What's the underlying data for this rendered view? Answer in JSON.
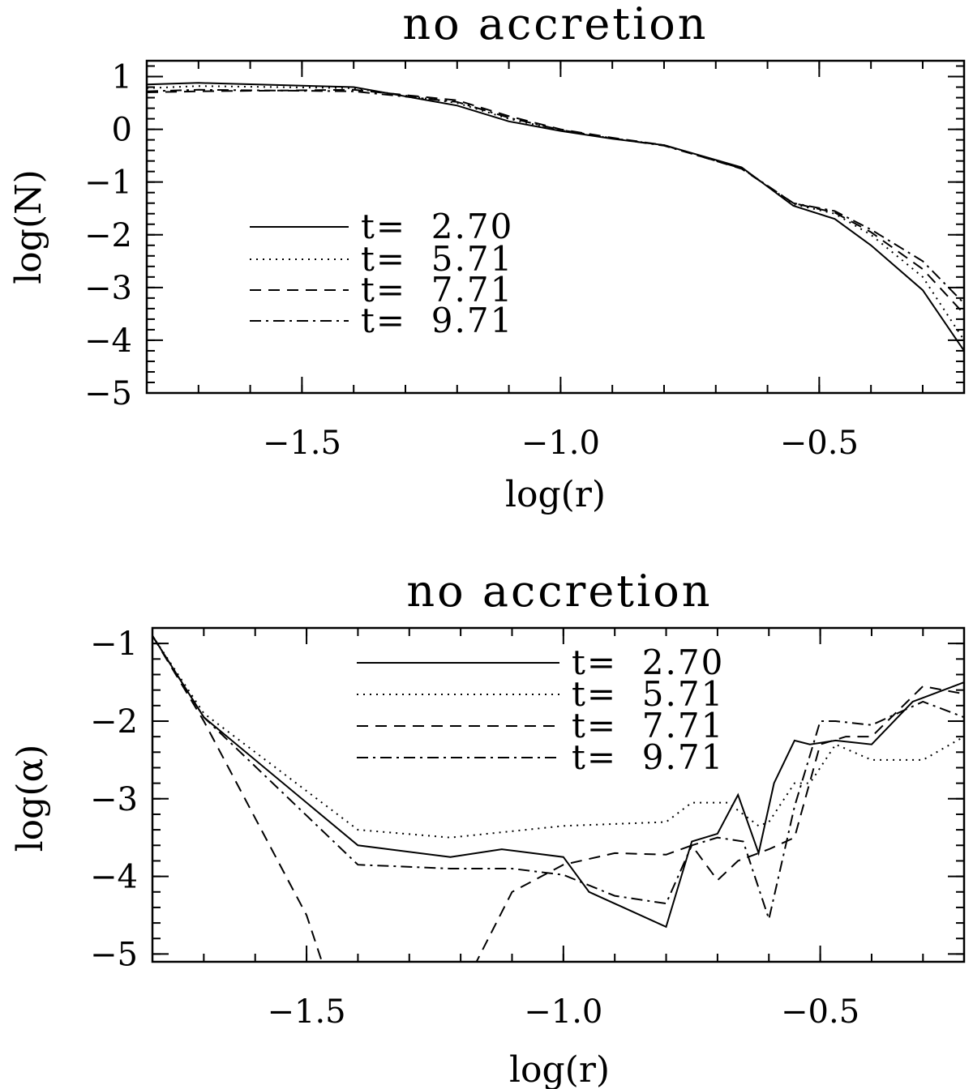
{
  "chart_data": [
    {
      "type": "line",
      "title": "no accretion",
      "xlabel": "log(r)",
      "ylabel": "log(N)",
      "xlim": [
        -1.8,
        -0.22
      ],
      "ylim": [
        -5,
        1.3
      ],
      "xticks": [
        -1.5,
        -1.0,
        -0.5
      ],
      "xtick_labels": [
        "−1.5",
        "−1.0",
        "−0.5"
      ],
      "yticks": [
        1,
        0,
        -1,
        -2,
        -3,
        -4,
        -5
      ],
      "ytick_labels": [
        "1",
        "0",
        "−1",
        "−2",
        "−3",
        "−4",
        "−5"
      ],
      "legend_position": "center-left",
      "series": [
        {
          "name": "t=  2.70",
          "style": "solid",
          "x": [
            -1.8,
            -1.7,
            -1.4,
            -1.2,
            -1.1,
            -1.0,
            -0.9,
            -0.8,
            -0.65,
            -0.55,
            -0.47,
            -0.4,
            -0.3,
            -0.22
          ],
          "y": [
            0.85,
            0.88,
            0.8,
            0.45,
            0.15,
            -0.03,
            -0.18,
            -0.3,
            -0.72,
            -1.45,
            -1.7,
            -2.2,
            -3.05,
            -4.2
          ]
        },
        {
          "name": "t=  5.71",
          "style": "dotted",
          "x": [
            -1.8,
            -1.7,
            -1.4,
            -1.2,
            -1.1,
            -1.0,
            -0.9,
            -0.8,
            -0.65,
            -0.55,
            -0.47,
            -0.4,
            -0.3,
            -0.22
          ],
          "y": [
            0.78,
            0.82,
            0.78,
            0.5,
            0.2,
            -0.02,
            -0.17,
            -0.3,
            -0.73,
            -1.42,
            -1.6,
            -2.0,
            -2.8,
            -4.0
          ]
        },
        {
          "name": "t=  7.71",
          "style": "dashed",
          "x": [
            -1.8,
            -1.7,
            -1.4,
            -1.2,
            -1.1,
            -1.0,
            -0.9,
            -0.8,
            -0.65,
            -0.55,
            -0.47,
            -0.4,
            -0.3,
            -0.22
          ],
          "y": [
            0.7,
            0.72,
            0.75,
            0.55,
            0.25,
            0.0,
            -0.16,
            -0.3,
            -0.75,
            -1.4,
            -1.58,
            -1.95,
            -2.65,
            -3.5
          ]
        },
        {
          "name": "t=  9.71",
          "style": "dashdot",
          "x": [
            -1.8,
            -1.7,
            -1.4,
            -1.2,
            -1.1,
            -1.0,
            -0.9,
            -0.8,
            -0.65,
            -0.55,
            -0.47,
            -0.4,
            -0.3,
            -0.22
          ],
          "y": [
            0.72,
            0.75,
            0.72,
            0.52,
            0.22,
            -0.01,
            -0.17,
            -0.31,
            -0.74,
            -1.4,
            -1.55,
            -1.9,
            -2.5,
            -3.3
          ]
        }
      ]
    },
    {
      "type": "line",
      "title": "no accretion",
      "xlabel": "log(r)",
      "ylabel": "log(α)",
      "xlim": [
        -1.8,
        -0.22
      ],
      "ylim": [
        -5.1,
        -0.8
      ],
      "xticks": [
        -1.5,
        -1.0,
        -0.5
      ],
      "xtick_labels": [
        "−1.5",
        "−1.0",
        "−0.5"
      ],
      "yticks": [
        -1,
        -2,
        -3,
        -4,
        -5
      ],
      "ytick_labels": [
        "−1",
        "−2",
        "−3",
        "−4",
        "−5"
      ],
      "legend_position": "top-center",
      "series": [
        {
          "name": "t=  2.70",
          "style": "solid",
          "x": [
            -1.8,
            -1.7,
            -1.4,
            -1.22,
            -1.12,
            -1.0,
            -0.95,
            -0.8,
            -0.75,
            -0.7,
            -0.66,
            -0.62,
            -0.59,
            -0.55,
            -0.52,
            -0.47,
            -0.4,
            -0.32,
            -0.22
          ],
          "y": [
            -0.9,
            -1.95,
            -3.6,
            -3.75,
            -3.65,
            -3.75,
            -4.2,
            -4.65,
            -3.55,
            -3.45,
            -2.95,
            -3.7,
            -2.8,
            -2.25,
            -2.3,
            -2.25,
            -2.3,
            -1.75,
            -1.5
          ]
        },
        {
          "name": "t=  5.71",
          "style": "dotted",
          "x": [
            -1.8,
            -1.7,
            -1.4,
            -1.22,
            -1.0,
            -0.8,
            -0.75,
            -0.68,
            -0.62,
            -0.6,
            -0.55,
            -0.52,
            -0.47,
            -0.4,
            -0.3,
            -0.22
          ],
          "y": [
            -0.9,
            -1.9,
            -3.4,
            -3.5,
            -3.35,
            -3.3,
            -3.05,
            -3.05,
            -3.35,
            -3.3,
            -2.8,
            -2.8,
            -2.3,
            -2.5,
            -2.5,
            -2.2
          ]
        },
        {
          "name": "t=  7.71",
          "style": "dashed",
          "x": [
            -1.8,
            -1.7,
            -1.5,
            -1.45,
            -1.2,
            -1.1,
            -1.0,
            -0.9,
            -0.8,
            -0.75,
            -0.7,
            -0.66,
            -0.6,
            -0.55,
            -0.5,
            -0.45,
            -0.4,
            -0.3,
            -0.22
          ],
          "y": [
            -0.9,
            -2.0,
            -4.5,
            -5.5,
            -5.5,
            -4.2,
            -3.85,
            -3.7,
            -3.72,
            -3.6,
            -4.05,
            -3.8,
            -3.65,
            -3.5,
            -2.3,
            -2.2,
            -2.2,
            -1.55,
            -1.65
          ]
        },
        {
          "name": "t=  9.71",
          "style": "dashdot",
          "x": [
            -1.8,
            -1.7,
            -1.4,
            -1.22,
            -1.1,
            -1.0,
            -0.9,
            -0.8,
            -0.75,
            -0.7,
            -0.65,
            -0.6,
            -0.55,
            -0.5,
            -0.47,
            -0.4,
            -0.3,
            -0.22
          ],
          "y": [
            -0.9,
            -1.95,
            -3.85,
            -3.9,
            -3.9,
            -3.98,
            -4.25,
            -4.35,
            -3.6,
            -3.5,
            -3.55,
            -4.55,
            -3.1,
            -2.0,
            -2.0,
            -2.05,
            -1.75,
            -1.95
          ]
        }
      ]
    }
  ]
}
